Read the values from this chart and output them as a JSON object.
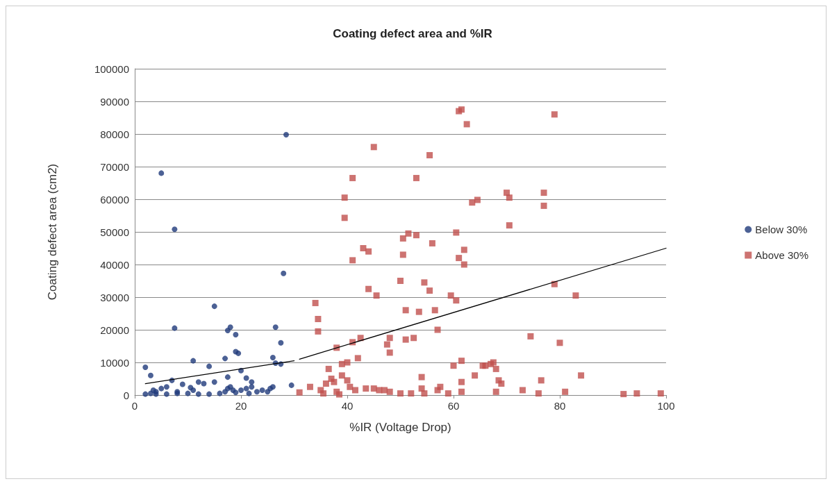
{
  "chart_data": {
    "type": "scatter",
    "title": "Coating defect area and %IR",
    "xlabel": "%IR (Voltage Drop)",
    "ylabel": "Coating defect area (cm2)",
    "xlim": [
      0,
      100
    ],
    "xticks": [
      0,
      20,
      40,
      60,
      80,
      100
    ],
    "ylim": [
      0,
      100000
    ],
    "yticks": [
      0,
      10000,
      20000,
      30000,
      40000,
      50000,
      60000,
      70000,
      80000,
      90000,
      100000
    ],
    "grid": "y",
    "legend": "right",
    "series": [
      {
        "name": "Below 30%",
        "color": "#1f3a7a",
        "marker": "circle",
        "x": [
          2,
          3,
          5,
          7.5,
          7.5,
          28.5,
          28,
          15,
          17.5,
          18,
          19,
          26.5,
          27.5,
          19,
          19.5,
          26,
          11,
          17,
          14,
          20,
          26.5,
          27.5,
          17.5,
          21,
          22,
          12,
          13,
          9,
          10.5,
          8,
          5,
          6,
          3.5,
          4,
          3,
          2,
          4,
          6,
          8,
          10,
          12,
          14,
          16,
          17,
          17.5,
          18,
          18.5,
          19,
          20,
          21,
          21.5,
          23,
          24,
          25,
          25.5,
          26,
          29.5,
          22,
          15,
          7,
          11
        ],
        "values": [
          8500,
          6000,
          68000,
          50800,
          20500,
          79800,
          37300,
          27200,
          19800,
          20800,
          18500,
          20800,
          16000,
          13300,
          12800,
          11500,
          10500,
          11200,
          8800,
          7500,
          9800,
          9500,
          5500,
          5200,
          4000,
          4000,
          3500,
          3300,
          2300,
          1000,
          2000,
          2500,
          1500,
          1000,
          500,
          300,
          300,
          300,
          500,
          500,
          300,
          300,
          500,
          1000,
          2000,
          2500,
          1500,
          800,
          1500,
          2000,
          500,
          1000,
          1500,
          1000,
          2000,
          2500,
          3000,
          2500,
          4000,
          4500,
          1500
        ]
      },
      {
        "name": "Above 30%",
        "color": "#c0504d",
        "marker": "square",
        "x": [
          34,
          34.5,
          34.5,
          31,
          33,
          35,
          35.5,
          36,
          36.5,
          37,
          37.5,
          38,
          38,
          38.5,
          39,
          39,
          39.5,
          39.5,
          40,
          40,
          40.5,
          41,
          41,
          41,
          41.5,
          42,
          42.5,
          43,
          43.5,
          44,
          44,
          45,
          45.5,
          46,
          47,
          47.5,
          48,
          48,
          50,
          50.5,
          50.5,
          51,
          51,
          51.5,
          52,
          52.5,
          53,
          53,
          53.5,
          54,
          54,
          54.5,
          54.5,
          55.5,
          55.5,
          56,
          56.5,
          57,
          57.5,
          59,
          59.5,
          60,
          60.5,
          60.5,
          61,
          61,
          61.5,
          61.5,
          61.5,
          61.5,
          62,
          62,
          62.5,
          63.5,
          64,
          64.5,
          65.5,
          66,
          67,
          67.5,
          68,
          68,
          68.5,
          69,
          70,
          70.5,
          70.5,
          73,
          74.5,
          76,
          76.5,
          77,
          77,
          79,
          79,
          80,
          81,
          83,
          84,
          92,
          94.5,
          99,
          50,
          45,
          57,
          48
        ],
        "values": [
          28200,
          23300,
          19500,
          800,
          2500,
          1500,
          500,
          3500,
          8000,
          5000,
          4000,
          14500,
          1000,
          200,
          9500,
          6000,
          60500,
          54300,
          10000,
          4500,
          2500,
          16200,
          41300,
          66500,
          1500,
          11300,
          17500,
          45000,
          2000,
          44000,
          32500,
          76000,
          30500,
          1500,
          1500,
          15500,
          17500,
          13000,
          35000,
          48000,
          43000,
          17000,
          26000,
          49500,
          500,
          17500,
          66500,
          49000,
          25500,
          5500,
          2000,
          500,
          34500,
          73500,
          32000,
          46500,
          26000,
          20000,
          2500,
          500,
          30500,
          9000,
          49800,
          29000,
          87000,
          42000,
          87500,
          10500,
          4000,
          1000,
          44500,
          40000,
          83000,
          59000,
          6000,
          59800,
          9000,
          9000,
          9500,
          10000,
          8000,
          1000,
          4500,
          3500,
          62000,
          60500,
          52000,
          1500,
          18000,
          500,
          4500,
          62000,
          58000,
          34000,
          86000,
          16000,
          1000,
          30500,
          6000,
          300,
          500,
          500,
          500,
          2000,
          1500,
          1000
        ]
      },
      {
        "type": "line",
        "color": "#000000",
        "marker": "none",
        "line_style": "solid",
        "x": [
          2,
          30
        ],
        "values": [
          3500,
          10500
        ]
      },
      {
        "type": "line",
        "color": "#000000",
        "marker": "none",
        "line_style": "solid",
        "x": [
          31,
          100
        ],
        "values": [
          11000,
          45000
        ]
      }
    ]
  }
}
